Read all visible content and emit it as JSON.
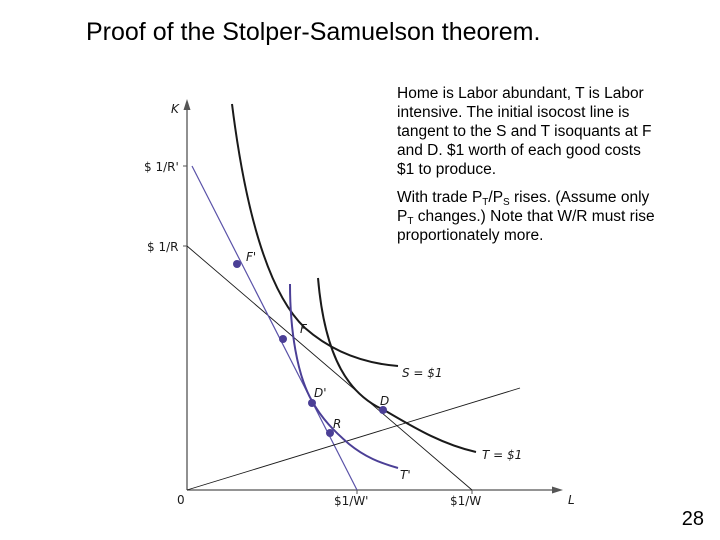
{
  "slide": {
    "title": "Proof of the Stolper-Samuelson theorem.",
    "page_number": "28"
  },
  "notes": {
    "paragraph1": "Home is Labor abundant, T is Labor intensive. The initial isocost line is tangent to the S and T isoquants at F and D. $1 worth of each good costs $1 to produce.",
    "paragraph2": {
      "t1": "With trade P",
      "s1": "T",
      "t2": "/P",
      "s2": "S",
      "t3": " rises. (Assume only P",
      "s3": "T",
      "t4": " changes.) Note that W/R must rise proportionately more."
    }
  },
  "diagram": {
    "axes": {
      "y_label": "K",
      "x_label": "L",
      "origin_label": "0"
    },
    "y_ticks": [
      "$ 1/R'",
      "$ 1/R"
    ],
    "x_ticks": [
      "$1/W'",
      "$1/W"
    ],
    "curve_labels": {
      "s_isoquant": "S = $1",
      "t_isoquant_initial": "T = $1",
      "t_isoquant_new": "T'"
    },
    "points": [
      "F'",
      "F",
      "D'",
      "R",
      "D"
    ],
    "colors": {
      "point": "#4b3f96",
      "new_isocost": "#5a52a8",
      "new_isoquant": "#4b3f96",
      "curves": "#1a1a1a",
      "axes": "#555555"
    }
  }
}
